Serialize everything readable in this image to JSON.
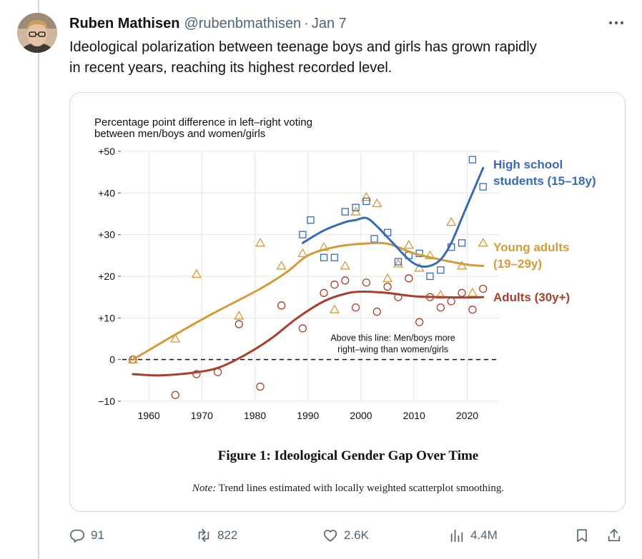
{
  "author": {
    "name": "Ruben Mathisen",
    "handle": "@rubenbmathisen",
    "date": "Jan 7"
  },
  "tweet": {
    "text": "Ideological polarization between teenage boys and girls has grown rapidly\nin recent years, reaching its highest recorded level."
  },
  "figure": {
    "caption": "Figure 1: Ideological Gender Gap Over Time",
    "note_label": "Note:",
    "note_text": "Trend lines estimated with locally weighted scatterplot smoothing."
  },
  "chart_data": {
    "type": "scatter",
    "title": "",
    "ylabel_line1": "Percentage point difference in left–right voting",
    "ylabel_line2": "between men/boys and women/girls",
    "xlabel": "",
    "xlim": [
      1955,
      2026
    ],
    "ylim": [
      -10,
      50
    ],
    "grid": true,
    "x_ticks": [
      1960,
      1970,
      1980,
      1990,
      2000,
      2010,
      2020
    ],
    "y_ticks": [
      50,
      40,
      30,
      20,
      10,
      0,
      -10
    ],
    "y_tick_labels": [
      "+50",
      "+40",
      "+30",
      "+20",
      "+10",
      "0",
      "−10"
    ],
    "zero_line_annotation": [
      "Above this line: Men/boys more",
      "right–wing than women/girls"
    ],
    "series": [
      {
        "name": "High school students (15–18y)",
        "label_lines": [
          "High school",
          "students (15–18y)"
        ],
        "color": "#3a6ab5",
        "marker": "square",
        "points": [
          [
            1989,
            30
          ],
          [
            1990.5,
            33.5
          ],
          [
            1993,
            24.5
          ],
          [
            1995,
            24.5
          ],
          [
            1997,
            35.5
          ],
          [
            1999,
            36.5
          ],
          [
            2001,
            38
          ],
          [
            2002.5,
            29
          ],
          [
            2005,
            30.5
          ],
          [
            2007,
            23.5
          ],
          [
            2009,
            25
          ],
          [
            2011,
            25.5
          ],
          [
            2013,
            20
          ],
          [
            2015,
            21.5
          ],
          [
            2017,
            27
          ],
          [
            2019,
            28
          ],
          [
            2021,
            48
          ],
          [
            2023,
            41.5
          ]
        ],
        "trend": [
          [
            1989,
            28
          ],
          [
            1993,
            31
          ],
          [
            1997,
            33
          ],
          [
            1999,
            33.5
          ],
          [
            2001,
            34
          ],
          [
            2003,
            32
          ],
          [
            2006,
            28
          ],
          [
            2009,
            24
          ],
          [
            2011,
            22.5
          ],
          [
            2013,
            22.5
          ],
          [
            2015,
            24
          ],
          [
            2017,
            28
          ],
          [
            2019,
            34
          ],
          [
            2021,
            40
          ],
          [
            2023,
            46
          ]
        ]
      },
      {
        "name": "Young adults (19–29y)",
        "label_lines": [
          "Young adults",
          "(19–29y)"
        ],
        "color": "#d39b3a",
        "marker": "triangle",
        "points": [
          [
            1957,
            0
          ],
          [
            1965,
            5
          ],
          [
            1969,
            20.5
          ],
          [
            1977,
            10.5
          ],
          [
            1981,
            28
          ],
          [
            1985,
            22.5
          ],
          [
            1989,
            25.5
          ],
          [
            1993,
            27
          ],
          [
            1995,
            12
          ],
          [
            1997,
            22.5
          ],
          [
            1999,
            35.5
          ],
          [
            2001,
            39
          ],
          [
            2003,
            37.5
          ],
          [
            2005,
            19.5
          ],
          [
            2007,
            23
          ],
          [
            2009,
            27.5
          ],
          [
            2011,
            22
          ],
          [
            2013,
            25
          ],
          [
            2015,
            15.5
          ],
          [
            2017,
            33
          ],
          [
            2019,
            22.5
          ],
          [
            2021,
            16
          ],
          [
            2023,
            28
          ]
        ],
        "trend": [
          [
            1957,
            0
          ],
          [
            1965,
            6
          ],
          [
            1972,
            11
          ],
          [
            1981,
            17
          ],
          [
            1986,
            21
          ],
          [
            1990,
            25
          ],
          [
            1995,
            27
          ],
          [
            2000,
            27.8
          ],
          [
            2005,
            27.8
          ],
          [
            2010,
            25.5
          ],
          [
            2015,
            24
          ],
          [
            2020,
            22.8
          ],
          [
            2023,
            22.5
          ]
        ]
      },
      {
        "name": "Adults (30y+)",
        "label_lines": [
          "Adults (30y+)"
        ],
        "color": "#a83f2f",
        "marker": "circle",
        "points": [
          [
            1957,
            0
          ],
          [
            1965,
            -8.5
          ],
          [
            1969,
            -3.5
          ],
          [
            1973,
            -3
          ],
          [
            1977,
            8.5
          ],
          [
            1981,
            -6.5
          ],
          [
            1985,
            13
          ],
          [
            1989,
            7.5
          ],
          [
            1993,
            16
          ],
          [
            1995,
            18
          ],
          [
            1997,
            19
          ],
          [
            1999,
            12.5
          ],
          [
            2001,
            18.5
          ],
          [
            2003,
            11.5
          ],
          [
            2005,
            17.5
          ],
          [
            2007,
            15
          ],
          [
            2009,
            19.5
          ],
          [
            2011,
            9
          ],
          [
            2013,
            15
          ],
          [
            2015,
            12.5
          ],
          [
            2017,
            14
          ],
          [
            2019,
            16
          ],
          [
            2021,
            12
          ],
          [
            2023,
            17
          ]
        ],
        "trend": [
          [
            1957,
            -3.5
          ],
          [
            1962,
            -3.8
          ],
          [
            1968,
            -3.2
          ],
          [
            1973,
            -2
          ],
          [
            1978,
            1
          ],
          [
            1983,
            5
          ],
          [
            1988,
            10
          ],
          [
            1993,
            14
          ],
          [
            1997,
            15.8
          ],
          [
            2000,
            16.3
          ],
          [
            2005,
            16
          ],
          [
            2010,
            15.2
          ],
          [
            2015,
            15
          ],
          [
            2020,
            14.9
          ],
          [
            2023,
            15
          ]
        ]
      }
    ]
  },
  "actions": {
    "replies": "91",
    "retweets": "822",
    "likes": "2.6K",
    "views": "4.4M"
  },
  "icons": {
    "more": "more-icon",
    "reply": "reply-icon",
    "retweet": "retweet-icon",
    "like": "heart-icon",
    "views": "views-icon",
    "bookmark": "bookmark-icon",
    "share": "share-icon"
  }
}
